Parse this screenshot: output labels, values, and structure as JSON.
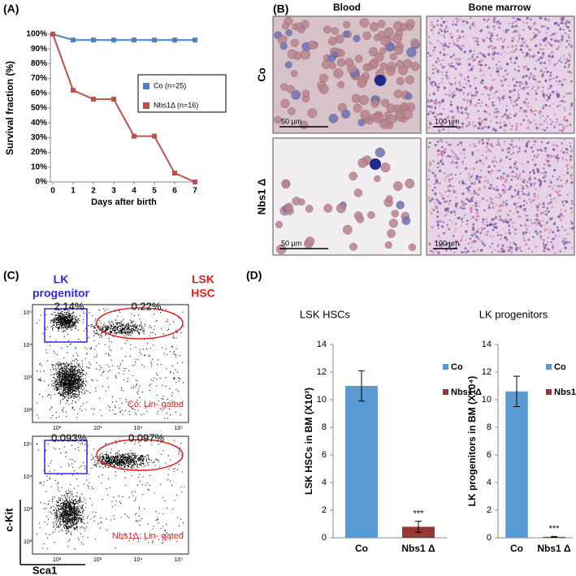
{
  "panel_labels": [
    "(A)",
    "(B)",
    "(C)",
    "(D)"
  ],
  "chart_data": [
    {
      "type": "line",
      "x_label": "Days after birth",
      "y_label": "Survival fraction (%)",
      "x": [
        0,
        1,
        2,
        3,
        4,
        5,
        6,
        7
      ],
      "xlim": [
        0,
        7
      ],
      "xticks": [
        0,
        1,
        2,
        3,
        4,
        5,
        6,
        7
      ],
      "ylim": [
        0,
        100
      ],
      "yticks": [
        {
          "value": 0,
          "label": "0%"
        },
        {
          "value": 10,
          "label": "10%"
        },
        {
          "value": 20,
          "label": "20%"
        },
        {
          "value": 30,
          "label": "30%"
        },
        {
          "value": 40,
          "label": "40%"
        },
        {
          "value": 50,
          "label": "50%"
        },
        {
          "value": 60,
          "label": "60%"
        },
        {
          "value": 70,
          "label": "70%"
        },
        {
          "value": 80,
          "label": "80%"
        },
        {
          "value": 90,
          "label": "90%"
        },
        {
          "value": 100,
          "label": "100%"
        }
      ],
      "legend": "right",
      "series": [
        {
          "name": "Co (n=25)",
          "color": "#4f81bd",
          "values": [
            100,
            96,
            96,
            96,
            96,
            96,
            96,
            96
          ]
        },
        {
          "name": "Nbs1Δ (n=16)",
          "color": "#c0504d",
          "values": [
            100,
            62,
            56,
            56,
            31,
            31,
            6,
            0
          ]
        }
      ]
    },
    {
      "type": "bar",
      "title": "LSK HSCs",
      "y_label": "LSK HSCs in BM (X10³)",
      "categories": [
        "Co",
        "Nbs1 Δ"
      ],
      "ylim": [
        0,
        14
      ],
      "yticks": [
        0,
        2,
        4,
        6,
        8,
        10,
        12,
        14
      ],
      "annotation": "***",
      "legend": "right",
      "series": [
        {
          "name": "Co",
          "color": "#5b9bd5",
          "values": [
            11,
            null
          ],
          "errors": [
            1.1,
            null
          ]
        },
        {
          "name": "Nbs1 Δ",
          "color": "#953735",
          "values": [
            null,
            0.8
          ],
          "errors": [
            null,
            0.4
          ]
        }
      ]
    },
    {
      "type": "bar",
      "title": "LK progenitors",
      "y_label": "LK progenitors in BM (X10⁴)",
      "categories": [
        "Co",
        "Nbs1 Δ"
      ],
      "ylim": [
        0,
        14
      ],
      "yticks": [
        0,
        2,
        4,
        6,
        8,
        10,
        12,
        14
      ],
      "annotation": "***",
      "legend": "right",
      "series": [
        {
          "name": "Co",
          "color": "#5b9bd5",
          "values": [
            10.6,
            null
          ],
          "errors": [
            1.1,
            null
          ]
        },
        {
          "name": "Nbs1 Δ",
          "color": "#953735",
          "values": [
            null,
            0.07
          ],
          "errors": [
            null,
            0.03
          ]
        }
      ]
    }
  ],
  "panel_b": {
    "columns": [
      "Blood",
      "Bone marrow"
    ],
    "rows": [
      "Co",
      "Nbs1 Δ"
    ],
    "scale_bars": [
      [
        "50 µm",
        "100 µm"
      ],
      [
        "50 µm",
        "100 µm"
      ]
    ]
  },
  "panel_c": {
    "gate_labels": [
      [
        "LK",
        "progenitor"
      ],
      [
        "LSK",
        "HSC"
      ]
    ],
    "plots": [
      {
        "percentages": [
          "2.14%",
          "0.22%"
        ],
        "label": "Co: Lin- gated"
      },
      {
        "percentages": [
          "0.093%",
          "0.097%"
        ],
        "label": "Nbs1Δ: Lin- gated"
      }
    ],
    "y_axis": "c-Kit",
    "x_axis": "Sca1",
    "axis_ticks": [
      "10²",
      "10³",
      "10⁴",
      "10⁵"
    ]
  }
}
